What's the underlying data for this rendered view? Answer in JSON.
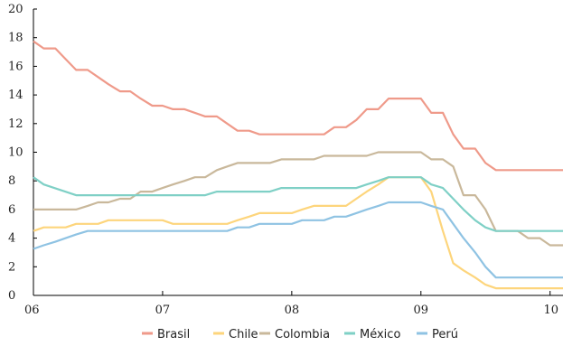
{
  "chart_data": {
    "type": "line",
    "title": "",
    "xlabel": "",
    "ylabel": "",
    "xlim": [
      2006.0,
      2010.1
    ],
    "ylim": [
      0,
      20
    ],
    "grid": false,
    "legend_position": "bottom",
    "x_ticks": [
      {
        "value": 2006,
        "label": "06"
      },
      {
        "value": 2007,
        "label": "07"
      },
      {
        "value": 2008,
        "label": "08"
      },
      {
        "value": 2009,
        "label": "09"
      },
      {
        "value": 2010,
        "label": "10"
      }
    ],
    "y_ticks": [
      0,
      2,
      4,
      6,
      8,
      10,
      12,
      14,
      16,
      18,
      20
    ],
    "series": [
      {
        "name": "Brasil",
        "color": "#ef9a8a",
        "points": [
          [
            2006.0,
            17.75
          ],
          [
            2006.08,
            17.25
          ],
          [
            2006.17,
            17.25
          ],
          [
            2006.25,
            16.5
          ],
          [
            2006.33,
            15.75
          ],
          [
            2006.42,
            15.75
          ],
          [
            2006.5,
            15.25
          ],
          [
            2006.58,
            14.75
          ],
          [
            2006.67,
            14.25
          ],
          [
            2006.75,
            14.25
          ],
          [
            2006.83,
            13.75
          ],
          [
            2006.92,
            13.25
          ],
          [
            2007.0,
            13.25
          ],
          [
            2007.08,
            13.0
          ],
          [
            2007.17,
            13.0
          ],
          [
            2007.25,
            12.75
          ],
          [
            2007.33,
            12.5
          ],
          [
            2007.42,
            12.5
          ],
          [
            2007.5,
            12.0
          ],
          [
            2007.58,
            11.5
          ],
          [
            2007.67,
            11.5
          ],
          [
            2007.75,
            11.25
          ],
          [
            2008.0,
            11.25
          ],
          [
            2008.25,
            11.25
          ],
          [
            2008.33,
            11.75
          ],
          [
            2008.42,
            11.75
          ],
          [
            2008.5,
            12.25
          ],
          [
            2008.58,
            13.0
          ],
          [
            2008.67,
            13.0
          ],
          [
            2008.75,
            13.75
          ],
          [
            2009.0,
            13.75
          ],
          [
            2009.08,
            12.75
          ],
          [
            2009.17,
            12.75
          ],
          [
            2009.25,
            11.25
          ],
          [
            2009.33,
            10.25
          ],
          [
            2009.42,
            10.25
          ],
          [
            2009.5,
            9.25
          ],
          [
            2009.58,
            8.75
          ],
          [
            2010.1,
            8.75
          ]
        ]
      },
      {
        "name": "Chile",
        "color": "#fdd57c",
        "points": [
          [
            2006.0,
            4.5
          ],
          [
            2006.08,
            4.75
          ],
          [
            2006.25,
            4.75
          ],
          [
            2006.33,
            5.0
          ],
          [
            2006.5,
            5.0
          ],
          [
            2006.58,
            5.25
          ],
          [
            2007.0,
            5.25
          ],
          [
            2007.08,
            5.0
          ],
          [
            2007.5,
            5.0
          ],
          [
            2007.58,
            5.25
          ],
          [
            2007.67,
            5.5
          ],
          [
            2007.75,
            5.75
          ],
          [
            2008.0,
            5.75
          ],
          [
            2008.08,
            6.0
          ],
          [
            2008.17,
            6.25
          ],
          [
            2008.42,
            6.25
          ],
          [
            2008.5,
            6.75
          ],
          [
            2008.58,
            7.25
          ],
          [
            2008.67,
            7.75
          ],
          [
            2008.75,
            8.25
          ],
          [
            2009.0,
            8.25
          ],
          [
            2009.08,
            7.25
          ],
          [
            2009.17,
            4.5
          ],
          [
            2009.25,
            2.25
          ],
          [
            2009.33,
            1.75
          ],
          [
            2009.42,
            1.25
          ],
          [
            2009.5,
            0.75
          ],
          [
            2009.58,
            0.5
          ],
          [
            2010.1,
            0.5
          ]
        ]
      },
      {
        "name": "Colombia",
        "color": "#c9b89b",
        "points": [
          [
            2006.0,
            6.0
          ],
          [
            2006.33,
            6.0
          ],
          [
            2006.42,
            6.25
          ],
          [
            2006.5,
            6.5
          ],
          [
            2006.58,
            6.5
          ],
          [
            2006.67,
            6.75
          ],
          [
            2006.75,
            6.75
          ],
          [
            2006.83,
            7.25
          ],
          [
            2006.92,
            7.25
          ],
          [
            2007.0,
            7.5
          ],
          [
            2007.08,
            7.75
          ],
          [
            2007.17,
            8.0
          ],
          [
            2007.25,
            8.25
          ],
          [
            2007.33,
            8.25
          ],
          [
            2007.42,
            8.75
          ],
          [
            2007.5,
            9.0
          ],
          [
            2007.58,
            9.25
          ],
          [
            2007.83,
            9.25
          ],
          [
            2007.92,
            9.5
          ],
          [
            2008.17,
            9.5
          ],
          [
            2008.25,
            9.75
          ],
          [
            2008.58,
            9.75
          ],
          [
            2008.67,
            10.0
          ],
          [
            2009.0,
            10.0
          ],
          [
            2009.08,
            9.5
          ],
          [
            2009.17,
            9.5
          ],
          [
            2009.25,
            9.0
          ],
          [
            2009.33,
            7.0
          ],
          [
            2009.42,
            7.0
          ],
          [
            2009.5,
            6.0
          ],
          [
            2009.58,
            4.5
          ],
          [
            2009.75,
            4.5
          ],
          [
            2009.83,
            4.0
          ],
          [
            2009.92,
            4.0
          ],
          [
            2010.0,
            3.5
          ],
          [
            2010.1,
            3.5
          ]
        ]
      },
      {
        "name": "México",
        "color": "#7fd0c6",
        "points": [
          [
            2006.0,
            8.25
          ],
          [
            2006.08,
            7.75
          ],
          [
            2006.33,
            7.0
          ],
          [
            2007.0,
            7.0
          ],
          [
            2007.33,
            7.0
          ],
          [
            2007.42,
            7.25
          ],
          [
            2007.83,
            7.25
          ],
          [
            2007.92,
            7.5
          ],
          [
            2008.5,
            7.5
          ],
          [
            2008.58,
            7.75
          ],
          [
            2008.67,
            8.0
          ],
          [
            2008.75,
            8.25
          ],
          [
            2009.0,
            8.25
          ],
          [
            2009.08,
            7.75
          ],
          [
            2009.17,
            7.5
          ],
          [
            2009.25,
            6.75
          ],
          [
            2009.33,
            6.0
          ],
          [
            2009.42,
            5.25
          ],
          [
            2009.5,
            4.75
          ],
          [
            2009.58,
            4.5
          ],
          [
            2010.1,
            4.5
          ]
        ]
      },
      {
        "name": "Perú",
        "color": "#8fc3e3",
        "points": [
          [
            2006.0,
            3.25
          ],
          [
            2006.08,
            3.5
          ],
          [
            2006.17,
            3.75
          ],
          [
            2006.25,
            4.0
          ],
          [
            2006.33,
            4.25
          ],
          [
            2006.42,
            4.5
          ],
          [
            2007.0,
            4.5
          ],
          [
            2007.5,
            4.5
          ],
          [
            2007.58,
            4.75
          ],
          [
            2007.67,
            4.75
          ],
          [
            2007.75,
            5.0
          ],
          [
            2008.0,
            5.0
          ],
          [
            2008.08,
            5.25
          ],
          [
            2008.25,
            5.25
          ],
          [
            2008.33,
            5.5
          ],
          [
            2008.42,
            5.5
          ],
          [
            2008.5,
            5.75
          ],
          [
            2008.58,
            6.0
          ],
          [
            2008.67,
            6.25
          ],
          [
            2008.75,
            6.5
          ],
          [
            2009.0,
            6.5
          ],
          [
            2009.08,
            6.25
          ],
          [
            2009.17,
            6.0
          ],
          [
            2009.25,
            5.0
          ],
          [
            2009.33,
            4.0
          ],
          [
            2009.42,
            3.0
          ],
          [
            2009.5,
            2.0
          ],
          [
            2009.58,
            1.25
          ],
          [
            2010.1,
            1.25
          ]
        ]
      }
    ]
  }
}
